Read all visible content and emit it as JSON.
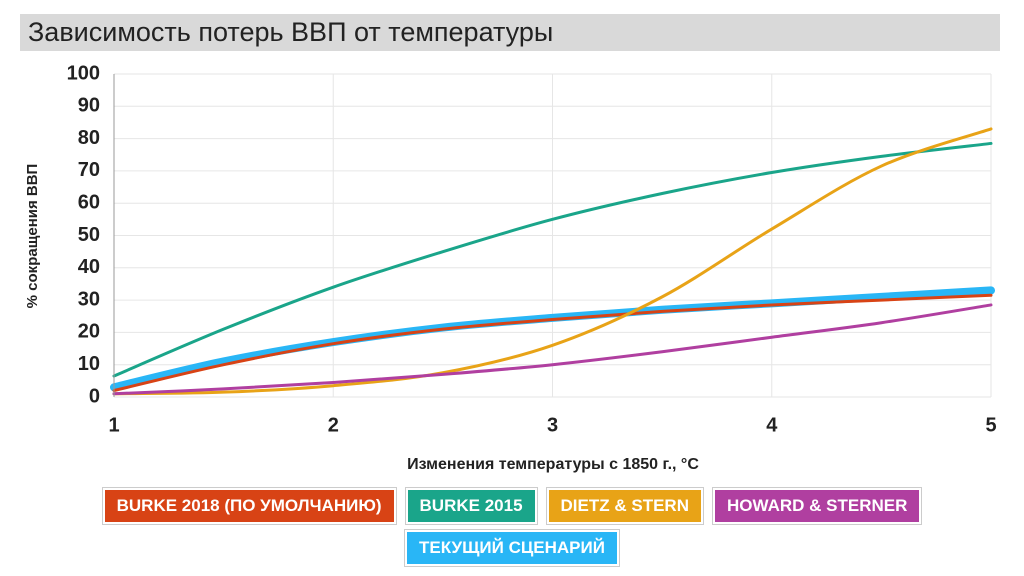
{
  "chart_data": {
    "type": "line",
    "title": "Зависимость потерь ВВП от температуры",
    "x_label": "Изменения температуры с 1850 г., °C",
    "y_label": "% сокращения ВВП",
    "x": [
      1,
      1.5,
      2,
      2.5,
      3,
      3.5,
      4,
      4.5,
      5
    ],
    "xlim": [
      1,
      5
    ],
    "xticks": [
      1,
      2,
      3,
      4,
      5
    ],
    "ylim": [
      0,
      100
    ],
    "yticks": [
      0,
      10,
      20,
      30,
      40,
      50,
      60,
      70,
      80,
      90,
      100
    ],
    "series": [
      {
        "name": "ТЕКУЩИЙ СЦЕНАРИЙ",
        "color": "#29b6f6",
        "values": [
          3,
          11,
          17,
          21.5,
          24.5,
          27,
          29,
          31,
          33
        ]
      },
      {
        "name": "BURKE 2018 (ПО УМОЛЧАНИЮ)",
        "color": "#d84315",
        "values": [
          2,
          10,
          16.5,
          21,
          24,
          26.5,
          28.5,
          30,
          31.5
        ]
      },
      {
        "name": "BURKE 2015",
        "color": "#1aa58a",
        "values": [
          6.5,
          21,
          34,
          45,
          55,
          63,
          69.5,
          74.5,
          78.5
        ]
      },
      {
        "name": "DIETZ & STERN",
        "color": "#e8a317",
        "values": [
          1,
          1.5,
          3.5,
          7.5,
          16,
          31,
          52,
          71.5,
          83
        ]
      },
      {
        "name": "HOWARD & STERNER",
        "color": "#b03fa0",
        "values": [
          1,
          2.5,
          4.5,
          7,
          10,
          14,
          18.5,
          23,
          28.5
        ]
      }
    ],
    "legend_order": [
      1,
      2,
      3,
      4,
      0
    ]
  }
}
